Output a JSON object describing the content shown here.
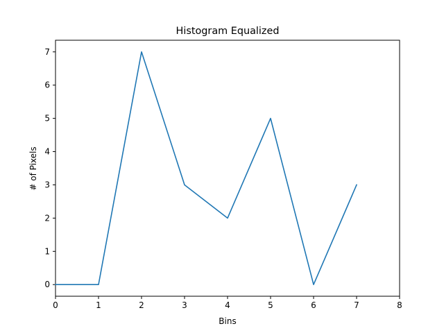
{
  "chart_data": {
    "type": "line",
    "title": "Histogram Equalized",
    "xlabel": "Bins",
    "ylabel": "# of Pixels",
    "xlim": [
      0,
      8
    ],
    "ylim": [
      -0.35,
      7.35
    ],
    "xticks": [
      "0",
      "1",
      "2",
      "3",
      "4",
      "5",
      "6",
      "7",
      "8"
    ],
    "yticks": [
      "0",
      "1",
      "2",
      "3",
      "4",
      "5",
      "6",
      "7"
    ],
    "grid": false,
    "series": [
      {
        "x": [
          0,
          1,
          2,
          3,
          4,
          5,
          6,
          7
        ],
        "values": [
          0,
          0,
          7,
          3,
          2,
          5,
          0,
          3
        ],
        "color": "#1f77b4"
      }
    ]
  }
}
